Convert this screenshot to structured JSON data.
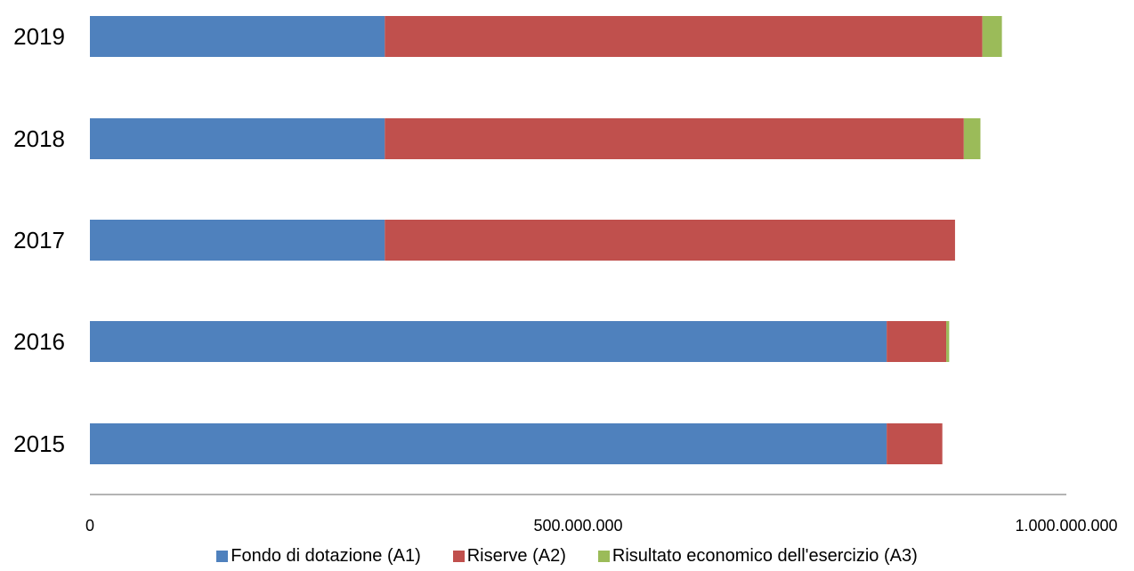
{
  "chart_data": {
    "type": "bar",
    "orientation": "horizontal",
    "stacked": true,
    "categories": [
      "2019",
      "2018",
      "2017",
      "2016",
      "2015"
    ],
    "series": [
      {
        "name": "Fondo di dotazione (A1)",
        "color": "#4f81bd",
        "values": [
          302000000,
          302000000,
          302000000,
          816000000,
          816000000
        ]
      },
      {
        "name": "Riserve (A2)",
        "color": "#c0504d",
        "values": [
          612000000,
          593000000,
          584000000,
          61000000,
          57000000
        ]
      },
      {
        "name": "Risultato economico dell'esercizio (A3)",
        "color": "#9bbb59",
        "values": [
          20000000,
          17000000,
          0,
          3000000,
          0
        ]
      }
    ],
    "xticks": [
      {
        "value": 0,
        "label": "0"
      },
      {
        "value": 500000000,
        "label": "500.000.000"
      },
      {
        "value": 1000000000,
        "label": "1.000.000.000"
      }
    ],
    "xlim": [
      0,
      1000000000
    ],
    "grid": false,
    "legend_position": "bottom"
  }
}
